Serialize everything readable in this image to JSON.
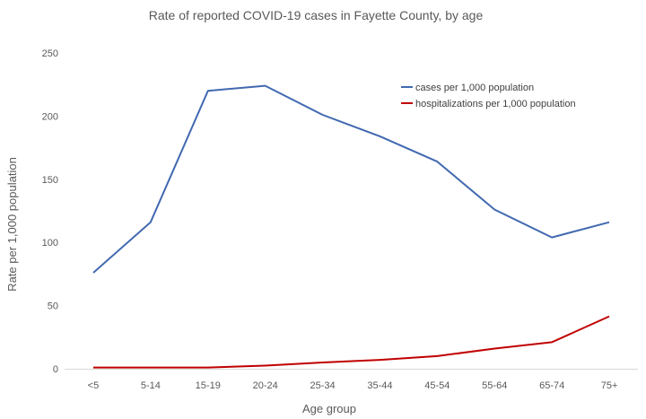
{
  "chart_data": {
    "type": "line",
    "title": "Rate of reported COVID-19 cases in Fayette County, by age",
    "xlabel": "Age group",
    "ylabel": "Rate per 1,000 population",
    "categories": [
      "<5",
      "5-14",
      "15-19",
      "20-24",
      "25-34",
      "35-44",
      "45-54",
      "55-64",
      "65-74",
      "75+"
    ],
    "ylim": [
      0,
      250
    ],
    "yticks": [
      0,
      50,
      100,
      150,
      200,
      250
    ],
    "grid": false,
    "legend_position": "top-right",
    "series": [
      {
        "name": "cases per 1,000 population",
        "color": "#4169b0",
        "values": [
          76,
          116,
          220,
          224,
          201,
          184,
          164,
          126,
          104,
          116
        ]
      },
      {
        "name": "hospitalizations per 1,000 population",
        "color": "#c00000",
        "values": [
          1,
          1,
          1,
          2.5,
          5,
          7,
          10,
          16,
          21,
          41.5
        ]
      }
    ]
  }
}
